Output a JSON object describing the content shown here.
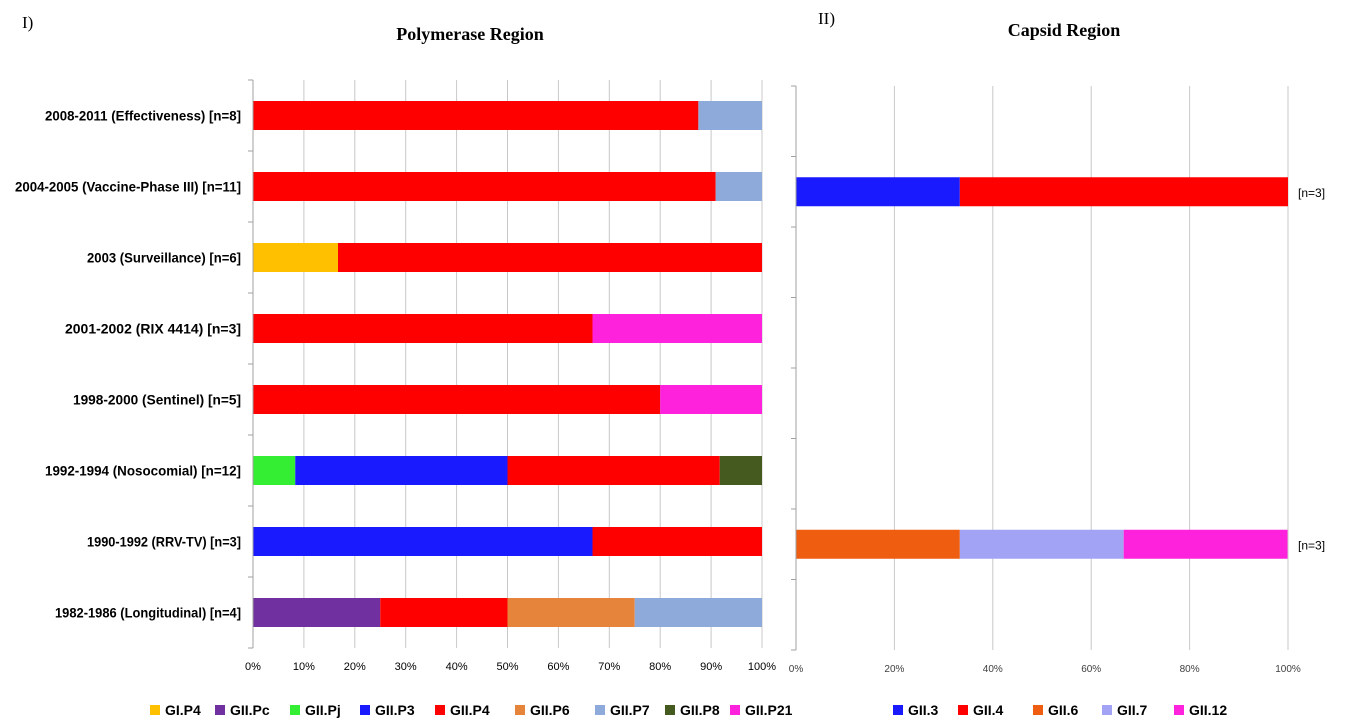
{
  "colors": {
    "GI.P4": "#ffc000",
    "GII.Pc": "#7030a0",
    "GII.Pj": "#33ee33",
    "GII.P3": "#1a1aff",
    "GII.P4": "#ff0000",
    "GII.P6": "#e6843c",
    "GII.P7": "#8eaadb",
    "GII.P8": "#455a1e",
    "GII.P21": "#ff22dd",
    "GII.3": "#1a1aff",
    "GII.4": "#ff0000",
    "GII.6": "#ee5d10",
    "GII.7": "#a3a3f5",
    "GII.12": "#ff22dd"
  },
  "chart_data": [
    {
      "type": "bar",
      "orientation": "horizontal",
      "stacked": "percent",
      "panel_label": "I)",
      "title": "Polymerase Region",
      "categories": [
        "2008-2011 (Effectiveness) [n=8]",
        "2004-2005 (Vaccine-Phase III) [n=11]",
        "2003 (Surveillance) [n=6]",
        "2001-2002 (RIX 4414) [n=3]",
        "1998-2000 (Sentinel) [n=5]",
        "1992-1994 (Nosocomial) [n=12]",
        "1990-1992 (RRV-TV) [n=3]",
        "1982-1986 (Longitudinal) [n=4]"
      ],
      "series": [
        {
          "name": "GI.P4",
          "values": [
            0,
            0,
            16.7,
            0,
            0,
            0,
            0,
            0
          ]
        },
        {
          "name": "GII.Pc",
          "values": [
            0,
            0,
            0,
            0,
            0,
            0,
            0,
            25
          ]
        },
        {
          "name": "GII.Pj",
          "values": [
            0,
            0,
            0,
            0,
            0,
            8.3,
            0,
            0
          ]
        },
        {
          "name": "GII.P3",
          "values": [
            0,
            0,
            0,
            0,
            0,
            41.7,
            66.7,
            0
          ]
        },
        {
          "name": "GII.P4",
          "values": [
            87.5,
            90.9,
            83.3,
            66.7,
            80,
            41.7,
            33.3,
            25
          ]
        },
        {
          "name": "GII.P6",
          "values": [
            0,
            0,
            0,
            0,
            0,
            0,
            0,
            25
          ]
        },
        {
          "name": "GII.P7",
          "values": [
            12.5,
            9.1,
            0,
            0,
            0,
            0,
            0,
            25
          ]
        },
        {
          "name": "GII.P8",
          "values": [
            0,
            0,
            0,
            0,
            0,
            8.3,
            0,
            0
          ]
        },
        {
          "name": "GII.P21",
          "values": [
            0,
            0,
            0,
            33.3,
            20,
            0,
            0,
            0
          ]
        }
      ],
      "xticks": [
        "0%",
        "10%",
        "20%",
        "30%",
        "40%",
        "50%",
        "60%",
        "70%",
        "80%",
        "90%",
        "100%"
      ],
      "xlim": [
        0,
        100
      ],
      "grid": true,
      "legend": "bottom"
    },
    {
      "type": "bar",
      "orientation": "horizontal",
      "stacked": "percent",
      "panel_label": "II)",
      "title": "Capsid Region",
      "categories": [
        "",
        "",
        "",
        "",
        "",
        "",
        "",
        ""
      ],
      "bar_labels": [
        "",
        "[n=3]",
        "",
        "",
        "",
        "",
        "[n=3]",
        ""
      ],
      "series": [
        {
          "name": "GII.3",
          "values": [
            0,
            33.3,
            0,
            0,
            0,
            0,
            0,
            0
          ]
        },
        {
          "name": "GII.4",
          "values": [
            0,
            66.7,
            0,
            0,
            0,
            0,
            0,
            0
          ]
        },
        {
          "name": "GII.6",
          "values": [
            0,
            0,
            0,
            0,
            0,
            0,
            33.3,
            0
          ]
        },
        {
          "name": "GII.7",
          "values": [
            0,
            0,
            0,
            0,
            0,
            0,
            33.3,
            0
          ]
        },
        {
          "name": "GII.12",
          "values": [
            0,
            0,
            0,
            0,
            0,
            0,
            33.3,
            0
          ]
        }
      ],
      "xticks": [
        "0%",
        "20%",
        "40%",
        "60%",
        "80%",
        "100%"
      ],
      "xlim": [
        0,
        100
      ],
      "grid": true,
      "legend": "bottom"
    }
  ]
}
